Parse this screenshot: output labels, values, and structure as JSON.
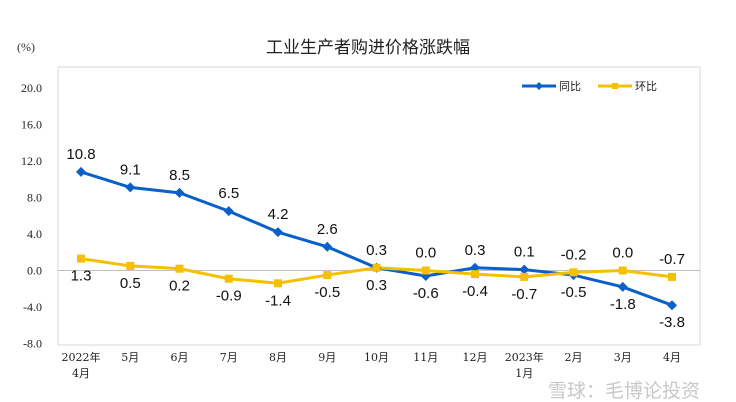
{
  "chart_data": {
    "type": "line",
    "title": "工业生产者购进价格涨跌幅",
    "ylabel": "(%)",
    "ylim": [
      -8,
      20
    ],
    "yticks": [
      "20.0",
      "16.0",
      "12.0",
      "8.0",
      "4.0",
      "0.0",
      "-4.0",
      "-8.0"
    ],
    "categories": [
      [
        "2022年",
        "4月"
      ],
      [
        "5月"
      ],
      [
        "6月"
      ],
      [
        "7月"
      ],
      [
        "8月"
      ],
      [
        "9月"
      ],
      [
        "10月"
      ],
      [
        "11月"
      ],
      [
        "12月"
      ],
      [
        "2023年",
        "1月"
      ],
      [
        "2月"
      ],
      [
        "3月"
      ],
      [
        "4月"
      ]
    ],
    "grid": false,
    "legend": "top-right",
    "series": [
      {
        "name": "同比",
        "color": "#0b5fc9",
        "marker": "diamond",
        "values": [
          10.8,
          9.1,
          8.5,
          6.5,
          4.2,
          2.6,
          0.3,
          -0.6,
          0.3,
          0.1,
          -0.5,
          -1.8,
          -3.8
        ],
        "labels": [
          "10.8",
          "9.1",
          "8.5",
          "6.5",
          "4.2",
          "2.6",
          "0.3",
          "-0.6",
          "0.3",
          "0.1",
          "-0.5",
          "-1.8",
          "-3.8"
        ],
        "label_pos": [
          "above",
          "above",
          "above",
          "above",
          "above",
          "above",
          "above",
          "below",
          "above",
          "above",
          "below",
          "below",
          "below"
        ]
      },
      {
        "name": "环比",
        "color": "#f5c000",
        "marker": "square",
        "values": [
          1.3,
          0.5,
          0.2,
          -0.9,
          -1.4,
          -0.5,
          0.3,
          0.0,
          -0.4,
          -0.7,
          -0.2,
          0.0,
          -0.7
        ],
        "labels": [
          "1.3",
          "0.5",
          "0.2",
          "-0.9",
          "-1.4",
          "-0.5",
          "0.3",
          "0.0",
          "-0.4",
          "-0.7",
          "-0.2",
          "0.0",
          "-0.7"
        ],
        "label_pos": [
          "below",
          "below",
          "below",
          "below",
          "below",
          "below",
          "below",
          "above",
          "below",
          "below",
          "above",
          "above",
          "above"
        ]
      }
    ]
  },
  "watermark": "雪球：毛博论投资"
}
